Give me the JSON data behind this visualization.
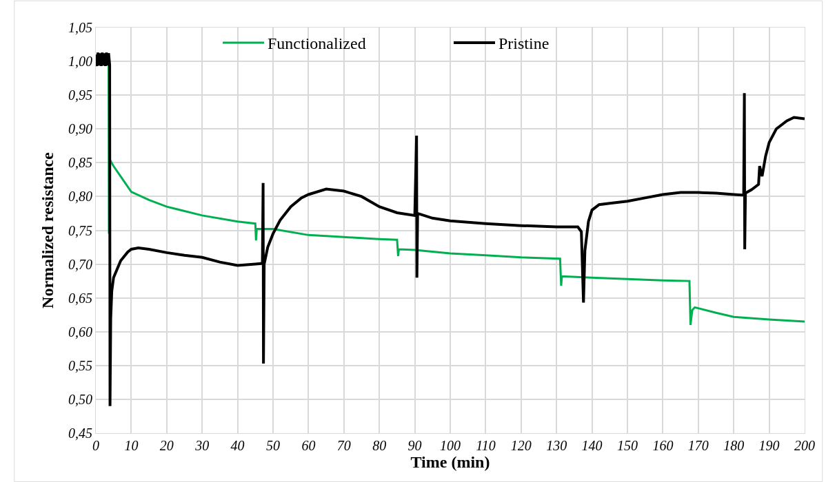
{
  "chart_data": {
    "type": "line",
    "xlabel": "Time (min)",
    "ylabel": "Normalized resistance",
    "xlim": [
      0,
      200
    ],
    "xticks": [
      0,
      10,
      20,
      30,
      40,
      50,
      60,
      70,
      80,
      90,
      100,
      110,
      120,
      130,
      140,
      150,
      160,
      170,
      180,
      190,
      200
    ],
    "ylim": [
      0.45,
      1.05
    ],
    "yticks": [
      {
        "value": 0.45,
        "label": "0,45"
      },
      {
        "value": 0.5,
        "label": "0,50"
      },
      {
        "value": 0.55,
        "label": "0,55"
      },
      {
        "value": 0.6,
        "label": "0,60"
      },
      {
        "value": 0.65,
        "label": "0,65"
      },
      {
        "value": 0.7,
        "label": "0,70"
      },
      {
        "value": 0.75,
        "label": "0,75"
      },
      {
        "value": 0.8,
        "label": "0,80"
      },
      {
        "value": 0.85,
        "label": "0,85"
      },
      {
        "value": 0.9,
        "label": "0,90"
      },
      {
        "value": 0.95,
        "label": "0,95"
      },
      {
        "value": 1.0,
        "label": "1,00"
      },
      {
        "value": 1.05,
        "label": "1,05"
      }
    ],
    "grid": true,
    "legend": "top",
    "marker": "none",
    "line_style": "solid",
    "series": [
      {
        "name": "Functionalized",
        "color": "#00b050",
        "x": [
          0,
          3.6,
          3.7,
          3.9,
          5,
          10,
          15,
          20,
          30,
          40,
          45,
          45.2,
          45.4,
          50,
          60,
          70,
          80,
          85,
          85.3,
          85.5,
          90,
          100,
          110,
          120,
          131,
          131.3,
          131.5,
          140,
          150,
          160,
          167.5,
          167.8,
          168.3,
          169,
          175,
          180,
          190,
          200
        ],
        "values": [
          1.0,
          1.0,
          0.745,
          0.855,
          0.845,
          0.807,
          0.795,
          0.785,
          0.772,
          0.763,
          0.76,
          0.735,
          0.752,
          0.752,
          0.743,
          0.74,
          0.737,
          0.736,
          0.712,
          0.722,
          0.721,
          0.716,
          0.713,
          0.71,
          0.708,
          0.668,
          0.682,
          0.68,
          0.678,
          0.676,
          0.675,
          0.61,
          0.632,
          0.636,
          0.628,
          0.622,
          0.618,
          0.615
        ]
      },
      {
        "name": "Pristine",
        "color": "#000000",
        "x": [
          0,
          0.3,
          0.6,
          0.9,
          1.2,
          1.5,
          1.8,
          2.1,
          2.4,
          2.7,
          3.0,
          3.3,
          3.6,
          3.9,
          4.0,
          4.2,
          4.5,
          5,
          7,
          9,
          10,
          12,
          15,
          20,
          25,
          30,
          35,
          40,
          45,
          47,
          47.2,
          47.3,
          47.5,
          48.5,
          50,
          52,
          55,
          58,
          60,
          65,
          70,
          75,
          80,
          85,
          90,
          90.5,
          90.6,
          90.8,
          95,
          100,
          110,
          120,
          130,
          136,
          137,
          137.6,
          138,
          139,
          140,
          142,
          145,
          150,
          155,
          160,
          165,
          170,
          175,
          180,
          182.8,
          183,
          183.1,
          183.3,
          185,
          187,
          187.3,
          188,
          189,
          190,
          192,
          195,
          197,
          200
        ],
        "values": [
          1.01,
          0.993,
          1.013,
          0.994,
          1.012,
          0.993,
          1.013,
          0.994,
          1.012,
          0.993,
          1.013,
          0.994,
          1.012,
          0.995,
          0.49,
          0.62,
          0.66,
          0.68,
          0.705,
          0.718,
          0.722,
          0.724,
          0.722,
          0.717,
          0.713,
          0.71,
          0.703,
          0.698,
          0.7,
          0.701,
          0.82,
          0.553,
          0.7,
          0.725,
          0.745,
          0.765,
          0.785,
          0.798,
          0.803,
          0.811,
          0.808,
          0.8,
          0.785,
          0.776,
          0.772,
          0.89,
          0.68,
          0.775,
          0.768,
          0.764,
          0.76,
          0.757,
          0.755,
          0.755,
          0.748,
          0.643,
          0.72,
          0.763,
          0.78,
          0.788,
          0.79,
          0.793,
          0.798,
          0.803,
          0.806,
          0.806,
          0.805,
          0.803,
          0.802,
          0.953,
          0.722,
          0.805,
          0.81,
          0.818,
          0.845,
          0.83,
          0.86,
          0.88,
          0.9,
          0.912,
          0.917,
          0.915
        ]
      }
    ]
  }
}
